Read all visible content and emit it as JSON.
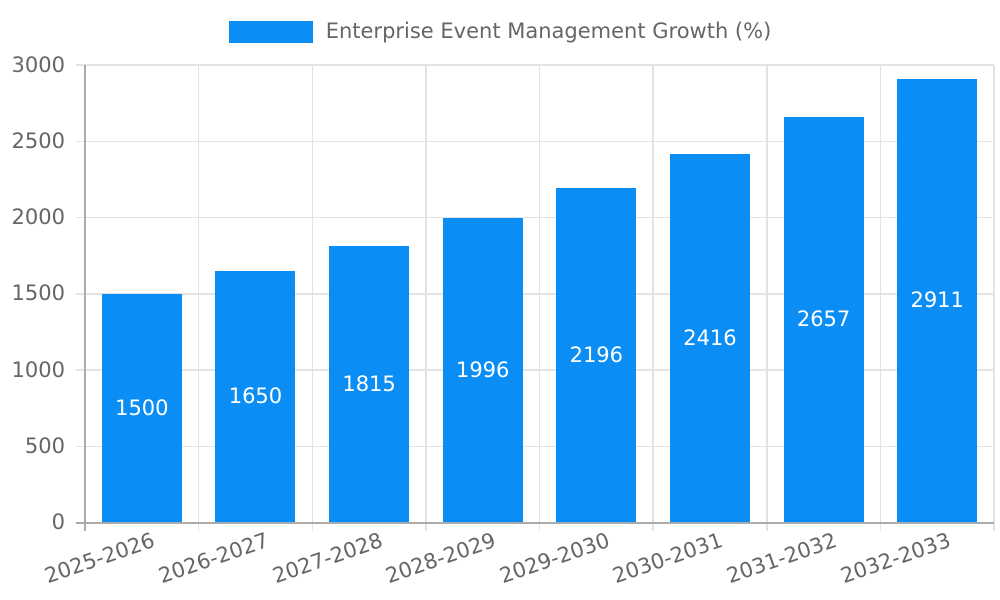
{
  "chart_data": {
    "type": "bar",
    "title": "Enterprise Event Management Growth (%)",
    "legend": {
      "label": "Enterprise Event Management Growth (%)",
      "position": "top-center"
    },
    "categories": [
      "2025-2026",
      "2026-2027",
      "2027-2028",
      "2028-2029",
      "2029-2030",
      "2030-2031",
      "2031-2032",
      "2032-2033"
    ],
    "values": [
      1500,
      1650,
      1815,
      1996,
      2196,
      2416,
      2657,
      2911
    ],
    "xlabel": "",
    "ylabel": "",
    "ylim": [
      0,
      3000
    ],
    "ytick_step": 500,
    "yticks": [
      0,
      500,
      1000,
      1500,
      2000,
      2500,
      3000
    ],
    "grid": true,
    "x_label_rotation_deg": -19,
    "colors": {
      "bar": "#0a8ef5",
      "bar_value_label": "#ffffff",
      "tick_text": "#666666",
      "grid_line": "#e3e3e3",
      "axis_line": "#ababab",
      "background": "#ffffff"
    }
  }
}
